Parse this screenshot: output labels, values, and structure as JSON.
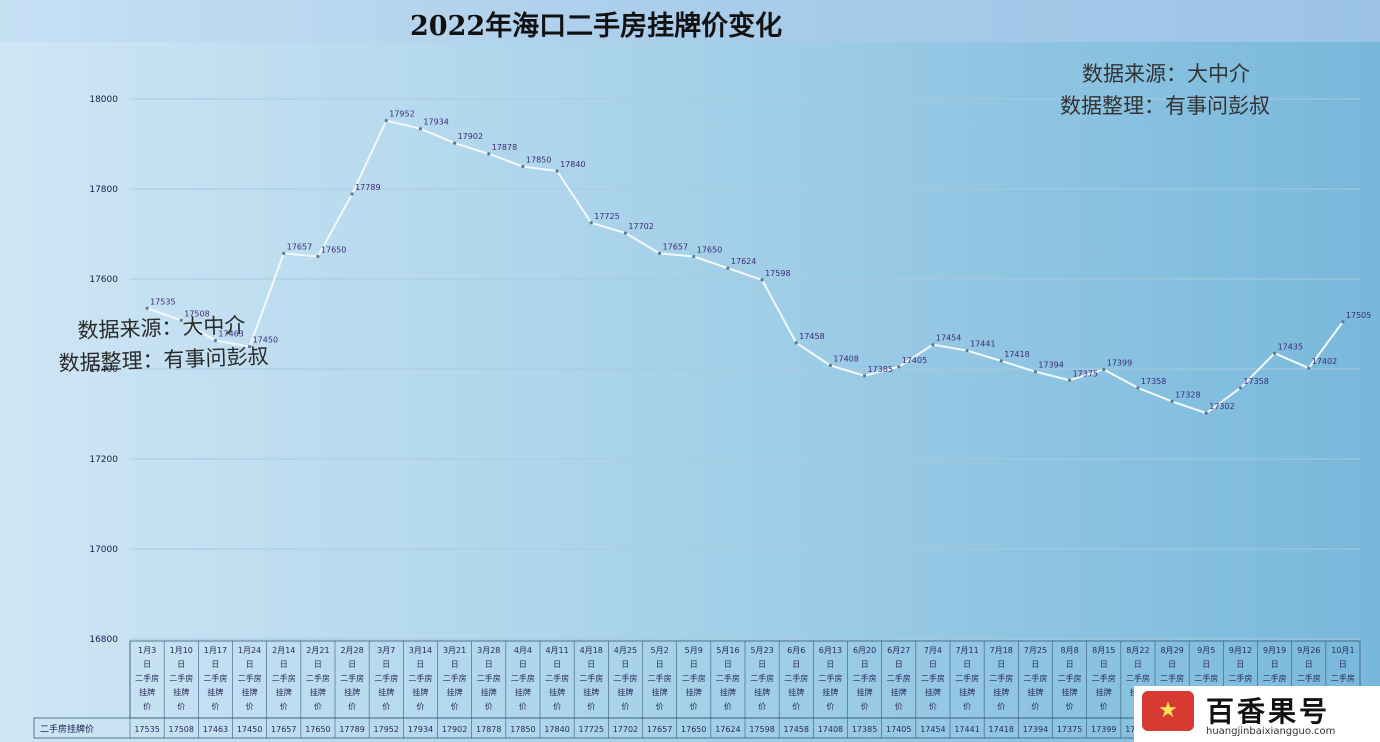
{
  "title": "2022年海口二手房挂牌价变化",
  "source_note": {
    "line1": "数据来源：大中介",
    "line2": "数据整理：有事问彭叔"
  },
  "series_label": "二手房挂牌价",
  "watermark": {
    "name": "百香果号",
    "url": "huangjinbaixiangguo.com",
    "logo_glyph": "★"
  },
  "colors": {
    "line": "#f4f8fb",
    "label": "#3f2a7a",
    "grid": "#a9c9e0",
    "axis_text": "#1a1a4a",
    "category_text": "#2a2a5a",
    "cell_border": "#3a5a7a"
  },
  "chart_data": {
    "type": "line",
    "title": "2022年海口二手房挂牌价变化",
    "ylim": [
      16800,
      18000
    ],
    "yticks": [
      16800,
      17000,
      17200,
      17400,
      17600,
      17800,
      18000
    ],
    "grid": true,
    "categories": [
      "1月3日二手房挂牌价",
      "1月10日二手房挂牌价",
      "1月17日二手房挂牌价",
      "1月24日二手房挂牌价",
      "2月14日二手房挂牌价",
      "2月21日二手房挂牌价",
      "2月28日二手房挂牌价",
      "3月7日二手房挂牌价",
      "3月14日二手房挂牌价",
      "3月21日二手房挂牌价",
      "3月28日二手房挂牌价",
      "4月4日二手房挂牌价",
      "4月11日二手房挂牌价",
      "4月18日二手房挂牌价",
      "4月25日二手房挂牌价",
      "5月2日二手房挂牌价",
      "5月9日二手房挂牌价",
      "5月16日二手房挂牌价",
      "5月23日二手房挂牌价",
      "6月6日二手房挂牌价",
      "6月13日二手房挂牌价",
      "6月20日二手房挂牌价",
      "6月27日二手房挂牌价",
      "7月4日二手房挂牌价",
      "7月11日二手房挂牌价",
      "7月18日二手房挂牌价",
      "7月25日二手房挂牌价",
      "8月8日二手房挂牌价",
      "8月15日二手房挂牌价",
      "8月22日二手房挂牌价",
      "8月29日二手房挂牌价",
      "9月5日二手房挂牌价",
      "9月12日二手房挂牌价",
      "9月19日二手房挂牌价",
      "9月26日二手房挂牌价",
      "10月1日二手房挂牌价"
    ],
    "series": [
      {
        "name": "二手房挂牌价",
        "values": [
          17535,
          17508,
          17463,
          17450,
          17657,
          17650,
          17789,
          17952,
          17934,
          17902,
          17878,
          17850,
          17840,
          17725,
          17702,
          17657,
          17650,
          17624,
          17598,
          17458,
          17408,
          17385,
          17405,
          17454,
          17441,
          17418,
          17394,
          17375,
          17399,
          17358,
          17328,
          17302,
          17358,
          17435,
          17402,
          17505
        ]
      }
    ]
  }
}
